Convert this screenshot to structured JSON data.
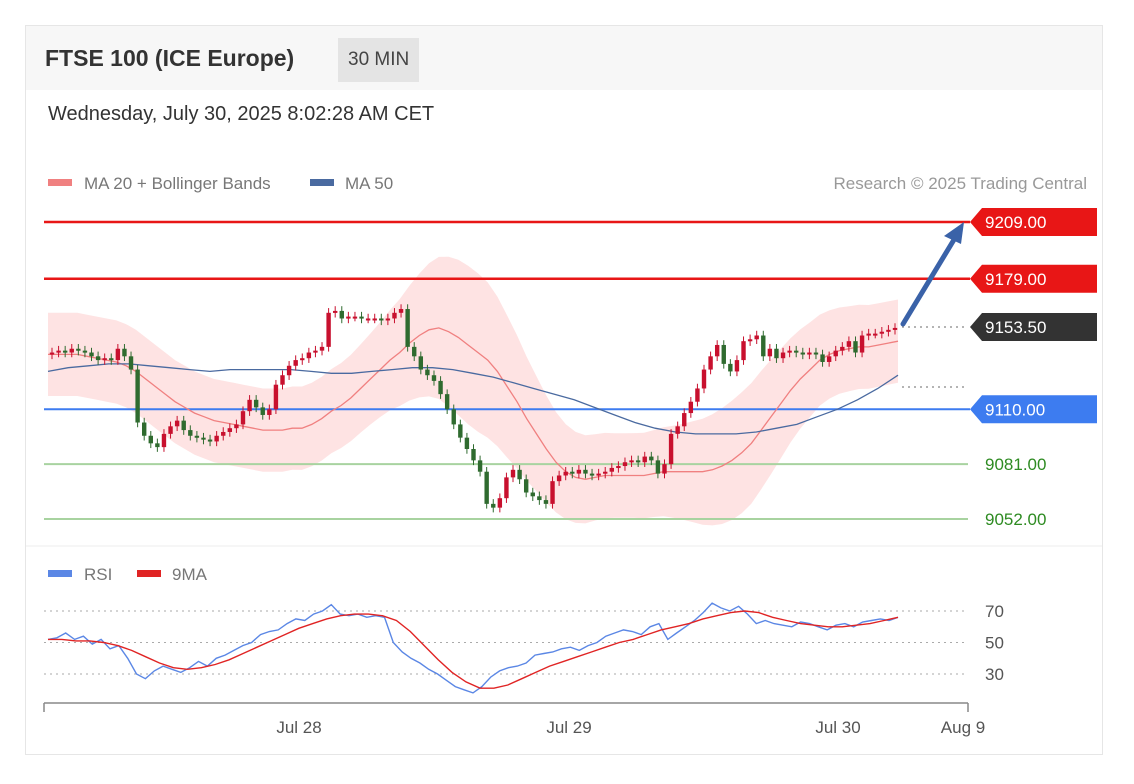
{
  "header": {
    "title": "FTSE 100 (ICE Europe)",
    "timeframe": "30 MIN",
    "datetime": "Wednesday, July 30, 2025 8:02:28 AM CET"
  },
  "legend": {
    "ma20": "MA 20 + Bollinger Bands",
    "ma50": "MA 50",
    "credit": "Research © 2025 Trading Central",
    "rsi": "RSI",
    "rsi_ma": "9MA"
  },
  "colors": {
    "resistance": "#e81616",
    "support": "#4a9a3a",
    "pivot": "#3d7cf0",
    "last": "#333333",
    "bull": "#c8102e",
    "bear": "#2f6b2f",
    "band": "#fdd9d9",
    "ma20": "#f08080",
    "ma50": "#4a6aa0",
    "rsi": "#5b87e5",
    "rsi_ma": "#e02424",
    "arrow": "#3a62a8"
  },
  "chart_data": [
    {
      "type": "candlestick",
      "ylim": [
        9041,
        9225
      ],
      "levels": [
        {
          "label": "9209.00",
          "value": 9209.0,
          "role": "resistance"
        },
        {
          "label": "9179.00",
          "value": 9179.0,
          "role": "resistance"
        },
        {
          "label": "9153.50",
          "value": 9153.5,
          "role": "last"
        },
        {
          "label": "9110.00",
          "value": 9110.0,
          "role": "pivot"
        },
        {
          "label": "9081.00",
          "value": 9081.0,
          "role": "support"
        },
        {
          "label": "9052.00",
          "value": 9052.0,
          "role": "support"
        }
      ],
      "x_ticks": [
        "Jul 28",
        "Jul 29",
        "Jul 30",
        "Aug 9"
      ],
      "closes": [
        9140,
        9141,
        9140,
        9142,
        9141,
        9140,
        9138,
        9136,
        9137,
        9136,
        9142,
        9138,
        9131,
        9103,
        9096,
        9092,
        9090,
        9097,
        9101,
        9104,
        9099,
        9096,
        9095,
        9094,
        9093,
        9096,
        9098,
        9100,
        9102,
        9109,
        9115,
        9111,
        9107,
        9110,
        9123,
        9128,
        9133,
        9136,
        9137,
        9140,
        9141,
        9143,
        9161,
        9162,
        9158,
        9159,
        9159,
        9158,
        9158,
        9158,
        9157,
        9158,
        9161,
        9163,
        9143,
        9138,
        9131,
        9128,
        9125,
        9118,
        9110,
        9102,
        9095,
        9089,
        9083,
        9077,
        9060,
        9058,
        9063,
        9074,
        9078,
        9073,
        9066,
        9064,
        9062,
        9060,
        9072,
        9075,
        9077,
        9076,
        9078,
        9076,
        9075,
        9076,
        9077,
        9079,
        9080,
        9082,
        9083,
        9082,
        9085,
        9083,
        9076,
        9081,
        9097,
        9101,
        9108,
        9114,
        9121,
        9131,
        9138,
        9144,
        9134,
        9130,
        9136,
        9146,
        9147,
        9149,
        9138,
        9142,
        9137,
        9140,
        9141,
        9140,
        9139,
        9140,
        9139,
        9135,
        9138,
        9141,
        9143,
        9146,
        9140,
        9149,
        9150,
        9150,
        9151,
        9152,
        9153
      ],
      "ma20": [
        9139,
        9139,
        9139,
        9139,
        9138,
        9137,
        9136,
        9135,
        9133,
        9130,
        9126,
        9122,
        9118,
        9114,
        9111,
        9108,
        9106,
        9104,
        9103,
        9102,
        9101,
        9100,
        9099,
        9099,
        9099,
        9100,
        9100,
        9102,
        9105,
        9109,
        9112,
        9116,
        9121,
        9126,
        9131,
        9136,
        9140,
        9145,
        9149,
        9152,
        9153,
        9151,
        9148,
        9144,
        9140,
        9136,
        9130,
        9122,
        9114,
        9105,
        9097,
        9089,
        9082,
        9077,
        9074,
        9073,
        9074,
        9075,
        9075,
        9075,
        9075,
        9075,
        9076,
        9077,
        9077,
        9077,
        9077,
        9077,
        9078,
        9080,
        9083,
        9087,
        9092,
        9099,
        9106,
        9113,
        9120,
        9126,
        9131,
        9136,
        9139,
        9141,
        9142,
        9143,
        9143,
        9144,
        9145,
        9146
      ],
      "ma50": [
        9130,
        9132,
        9133,
        9134,
        9134,
        9133,
        9132,
        9131,
        9130,
        9131,
        9131,
        9131,
        9131,
        9130,
        9129,
        9129,
        9130,
        9131,
        9132,
        9132,
        9131,
        9129,
        9127,
        9124,
        9121,
        9118,
        9115,
        9111,
        9107,
        9103,
        9100,
        9098,
        9097,
        9097,
        9097,
        9098,
        9100,
        9102,
        9106,
        9110,
        9115,
        9121,
        9128
      ]
    },
    {
      "type": "line",
      "ylim": [
        10,
        90
      ],
      "ticks": [
        "70",
        "50",
        "30"
      ],
      "series": [
        {
          "name": "RSI",
          "values": [
            52,
            53,
            56,
            52,
            54,
            49,
            52,
            46,
            48,
            40,
            30,
            27,
            32,
            35,
            33,
            31,
            34,
            38,
            35,
            40,
            42,
            45,
            48,
            50,
            55,
            57,
            58,
            62,
            65,
            64,
            68,
            70,
            74,
            68,
            67,
            68,
            66,
            67,
            66,
            50,
            44,
            40,
            37,
            33,
            30,
            26,
            22,
            20,
            18,
            22,
            28,
            32,
            34,
            35,
            37,
            42,
            43,
            44,
            46,
            47,
            45,
            48,
            50,
            54,
            56,
            58,
            57,
            55,
            60,
            62,
            52,
            56,
            60,
            64,
            69,
            75,
            72,
            70,
            73,
            68,
            62,
            64,
            62,
            61,
            60,
            63,
            62,
            60,
            58,
            61,
            62,
            60,
            63,
            64,
            65,
            64,
            66
          ]
        },
        {
          "name": "9MA",
          "values": [
            52,
            52,
            51,
            51,
            50,
            48,
            45,
            41,
            37,
            34,
            33,
            34,
            36,
            39,
            43,
            47,
            51,
            55,
            59,
            62,
            65,
            67,
            68,
            68,
            67,
            64,
            57,
            48,
            39,
            31,
            25,
            21,
            21,
            23,
            27,
            31,
            35,
            38,
            41,
            44,
            47,
            50,
            52,
            55,
            58,
            60,
            62,
            65,
            67,
            69,
            70,
            69,
            66,
            64,
            62,
            61,
            60,
            60,
            61,
            62,
            64,
            66
          ]
        }
      ]
    }
  ]
}
